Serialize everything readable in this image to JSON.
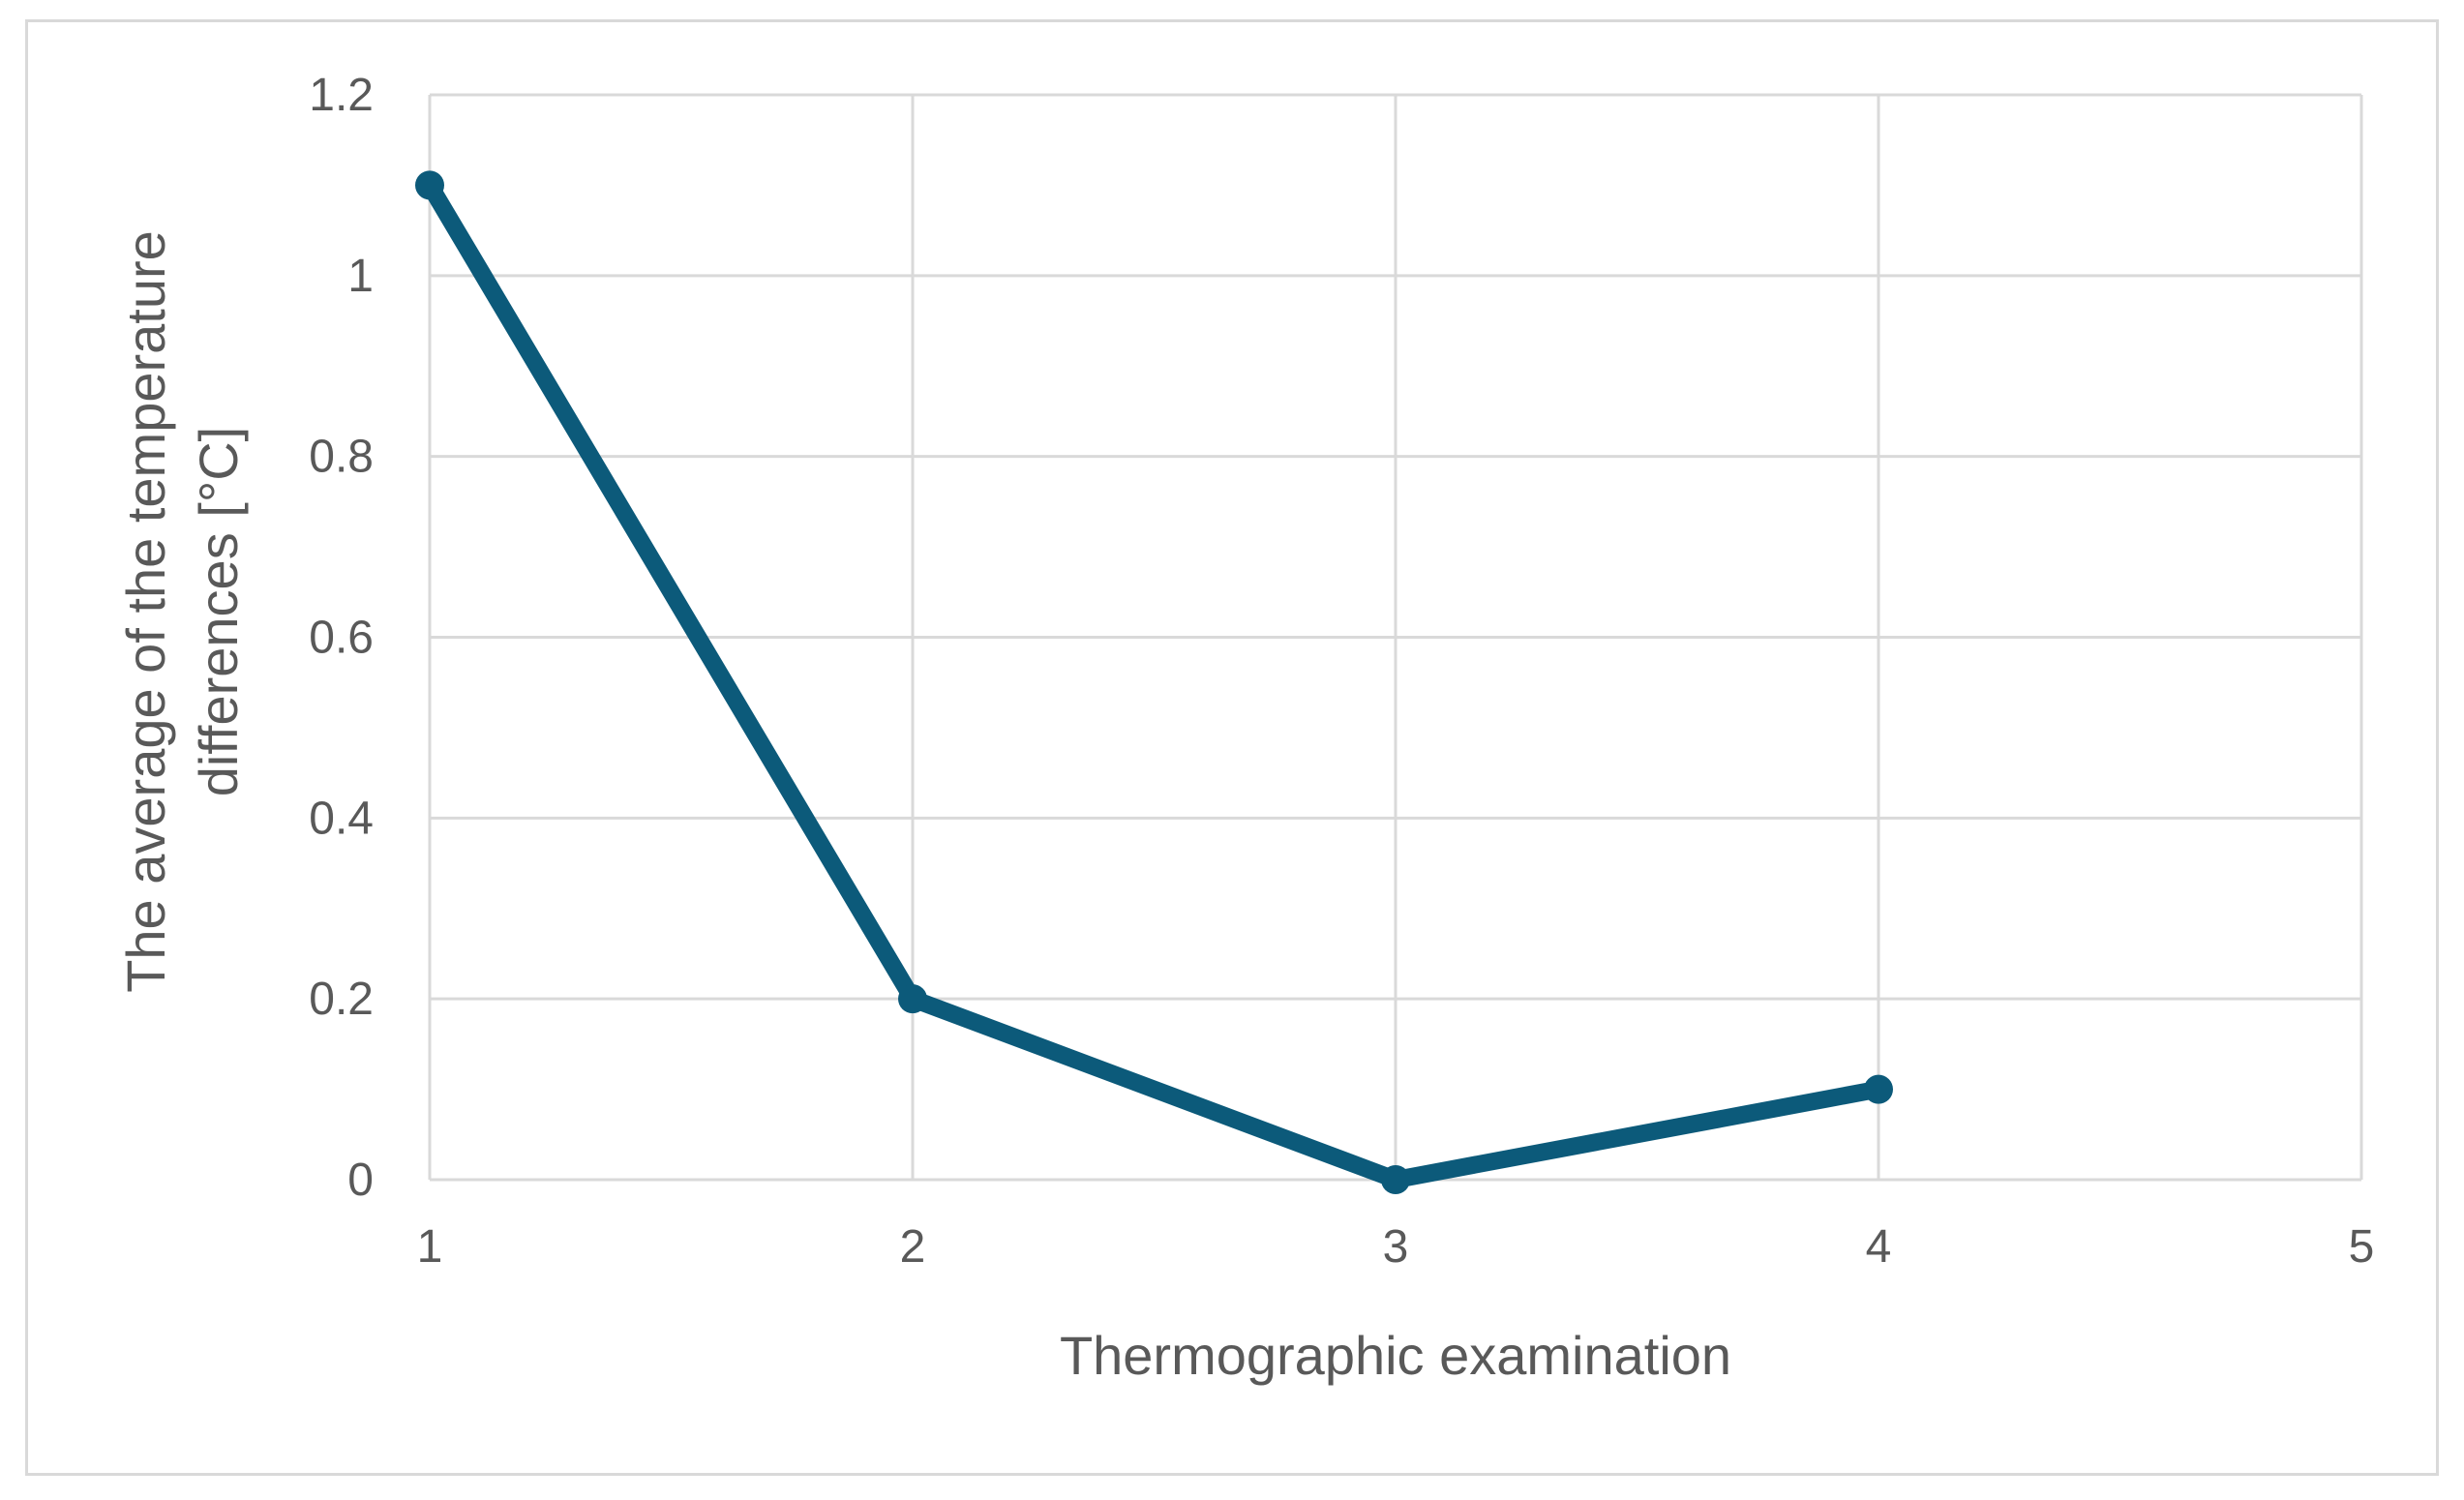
{
  "chart_data": {
    "type": "line",
    "title": "",
    "xlabel": "Thermographic examination",
    "ylabel_lines": [
      "The average of the temperature",
      "differences [°C]"
    ],
    "x_ticks": [
      "1",
      "2",
      "3",
      "4",
      "5"
    ],
    "y_ticks": [
      "0",
      "0.2",
      "0.4",
      "0.6",
      "0.8",
      "1",
      "1.2"
    ],
    "xlim": [
      1,
      5
    ],
    "ylim": [
      0,
      1.2
    ],
    "grid": true,
    "series": [
      {
        "x": [
          1,
          2,
          3,
          4
        ],
        "values": [
          1.1,
          0.2,
          0.0,
          0.1
        ],
        "color": "#0c5a7a",
        "markers": true
      }
    ]
  }
}
